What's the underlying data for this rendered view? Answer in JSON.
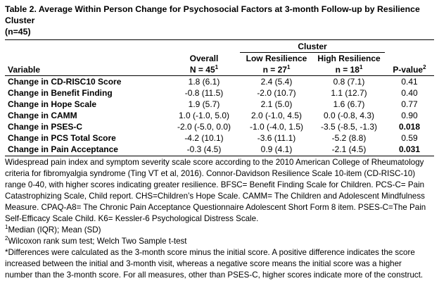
{
  "title_line1": "Table 2. Average Within Person Change for Psychosocial Factors at 3-month Follow-up by Resilience Cluster",
  "title_line2": "(n=45)",
  "header": {
    "cluster": "Cluster",
    "variable": "Variable",
    "overall": "Overall",
    "overall_n": "N = 45",
    "overall_n_sup": "1",
    "low": "Low Resilience",
    "low_n": "n = 27",
    "low_n_sup": "1",
    "high": "High Resilience",
    "high_n": "n = 18",
    "high_n_sup": "1",
    "pvalue": "P-value",
    "pvalue_sup": "2"
  },
  "rows": [
    {
      "variable": "Change in CD-RISC10 Score",
      "overall": "1.8 (6.1)",
      "low": "2.4 (5.4)",
      "high": "0.8 (7.1)",
      "p": "0.41",
      "p_bold": false
    },
    {
      "variable": "Change in Benefit Finding",
      "overall": "-0.8 (11.5)",
      "low": "-2.0 (10.7)",
      "high": "1.1 (12.7)",
      "p": "0.40",
      "p_bold": false
    },
    {
      "variable": "Change in Hope Scale",
      "overall": "1.9 (5.7)",
      "low": "2.1 (5.0)",
      "high": "1.6 (6.7)",
      "p": "0.77",
      "p_bold": false
    },
    {
      "variable": "Change in CAMM",
      "overall": "1.0 (-1.0, 5.0)",
      "low": "2.0 (-1.0, 4.5)",
      "high": "0.0 (-0.8, 4.3)",
      "p": "0.90",
      "p_bold": false
    },
    {
      "variable": "Change in PSES-C",
      "overall": "-2.0 (-5.0, 0.0)",
      "low": "-1.0 (-4.0, 1.5)",
      "high": "-3.5 (-8.5, -1.3)",
      "p": "0.018",
      "p_bold": true
    },
    {
      "variable": "Change in PCS Total Score",
      "overall": "-4.2 (10.1)",
      "low": "-3.6 (11.1)",
      "high": "-5.2 (8.8)",
      "p": "0.59",
      "p_bold": false
    },
    {
      "variable": "Change in Pain Acceptance",
      "overall": "-0.3 (4.5)",
      "low": "0.9 (4.1)",
      "high": "-2.1 (4.5)",
      "p": "0.031",
      "p_bold": true
    }
  ],
  "notes": {
    "abbreviations_lines": [
      "Widespread pain index and symptom severity scale score according to the 2010 American College of Rheumatology",
      "criteria for fibromyalgia syndrome (Ting VT et al, 2016). Connor-Davidson Resilience Scale 10-item (CD-RISC-10)",
      "range 0-40, with higher scores indicating greater resilience. BFSC= Benefit Finding Scale for Children. PCS-C= Pain",
      "Catastrophizing Scale, Child report. CHS=Children’s Hope Scale. CAMM= The Children and Adolescent Mindfulness",
      "Measure. CPAQ-A8= The Chronic Pain Acceptance Questionnaire Adolescent Short Form 8 item. PSES-C=The Pain",
      "Self-Efficacy Scale Child. K6= Kessler-6 Psychological Distress Scale."
    ],
    "footnote1_sup": "1",
    "footnote1": "Median (IQR); Mean (SD)",
    "footnote2_sup": "2",
    "footnote2": "Wilcoxon rank sum test; Welch Two Sample t-test",
    "differences_lines": [
      "*Differences were calculated as the 3-month score minus the initial score. A positive difference indicates the score",
      "increased between the initial and 3-month visit, whereas a negative score means the initial score was a higher",
      "number than the 3-month score. For all measures, other than PSES-C, higher scores indicate more of the construct."
    ]
  }
}
